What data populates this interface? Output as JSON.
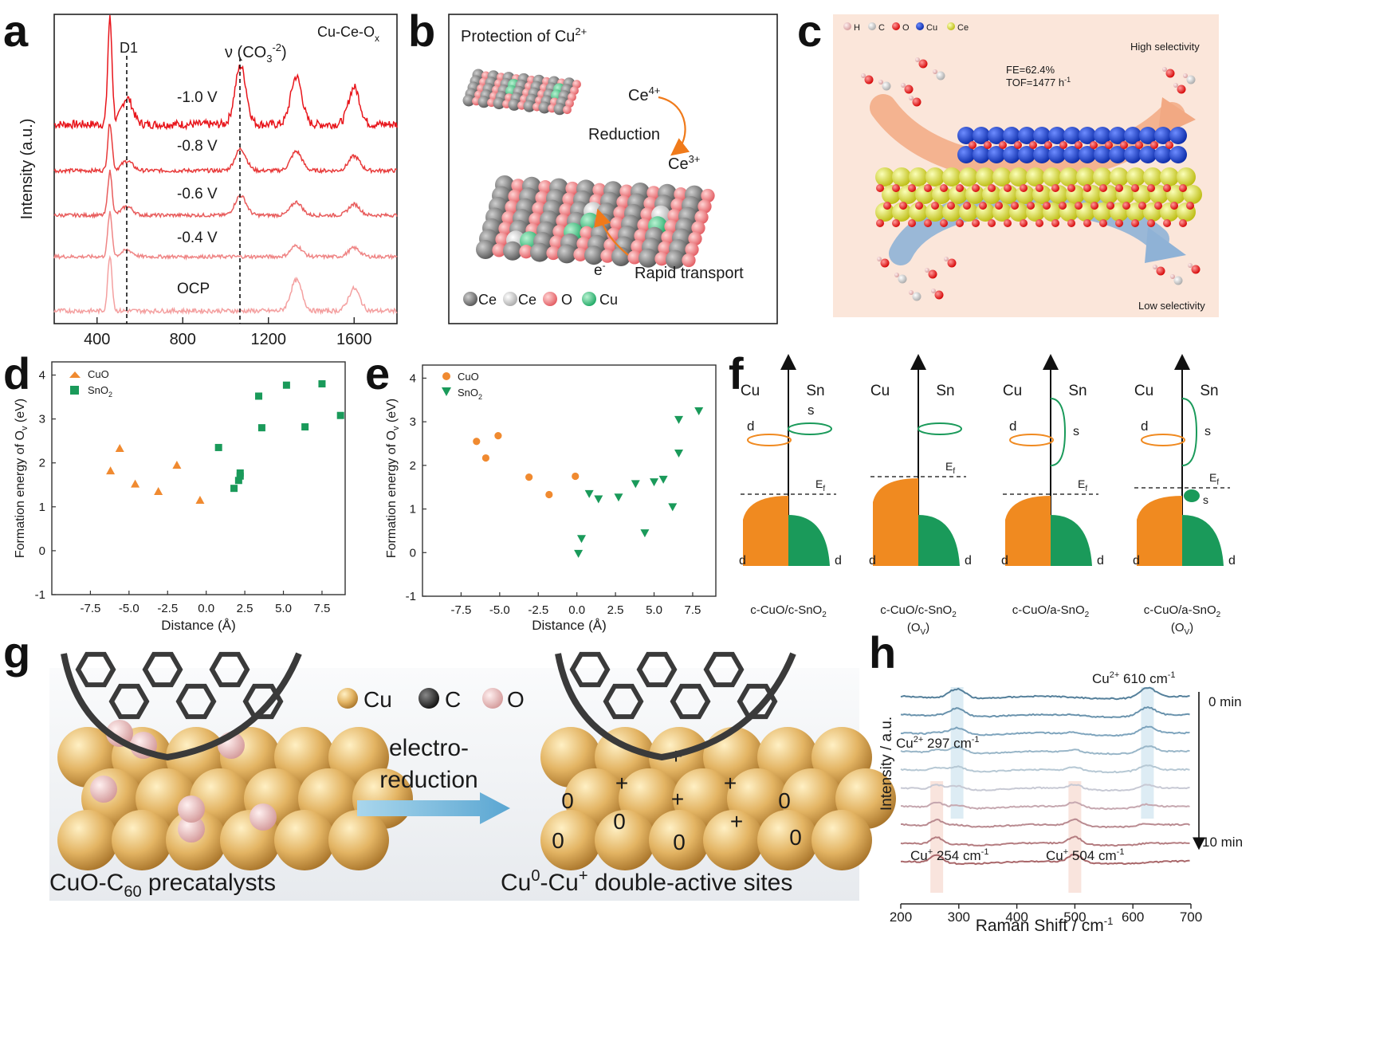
{
  "panels": {
    "a": {
      "label": "a",
      "corner": "Cu-Ce-O",
      "corner_sub": "x",
      "ylabel": "Intensity (a.u.)",
      "d1": "D1",
      "co3": "ν (CO",
      "co3_sub": "3",
      "co3_sup": "-2",
      "co3_close": ")",
      "curves": [
        "-1.0 V",
        "-0.8 V",
        "-0.6 V",
        "-0.4 V",
        "OCP"
      ],
      "xticks": [
        "400",
        "800",
        "1200",
        "1600"
      ]
    },
    "b": {
      "label": "b",
      "title": "Protection of Cu",
      "title_sup": "2+",
      "ce4": "Ce",
      "ce4_sup": "4+",
      "reduction": "Reduction",
      "ce3": "Ce",
      "ce3_sup": "3+",
      "electron": "e",
      "electron_sup": "-",
      "transport": "Rapid transport",
      "legend": [
        "Ce",
        "Ce",
        "O",
        "Cu"
      ]
    },
    "c": {
      "label": "c",
      "legend": [
        "H",
        "C",
        "O",
        "Cu",
        "Ce"
      ],
      "high": "High selectivity",
      "low": "Low selectivity",
      "fe": "FE=62.4%",
      "tof": "TOF=1477 h",
      "tof_sup": "-1"
    },
    "d": {
      "label": "d",
      "legend": [
        "CuO",
        "SnO",
        "2"
      ],
      "ylabel": "Formation energy of O",
      "ylabel_sub": "v",
      "ylabel_unit": " (eV)",
      "xlabel": "Distance (Å)"
    },
    "e": {
      "label": "e",
      "legend": [
        "CuO",
        "SnO",
        "2"
      ],
      "ylabel": "Formation energy of O",
      "ylabel_sub": "v",
      "ylabel_unit": " (eV)",
      "xlabel": "Distance (Å)"
    },
    "f": {
      "label": "f",
      "cu": "Cu",
      "sn": "Sn",
      "d": "d",
      "s": "s",
      "ef": "E",
      "ef_sub": "f",
      "captions": [
        "c-CuO/c-SnO",
        "c-CuO/c-SnO",
        "c-CuO/a-SnO",
        "c-CuO/a-SnO"
      ],
      "sub": "2",
      "ov": "(O",
      "ov_sub": "V",
      "ov_close": ")"
    },
    "g": {
      "label": "g",
      "legend": [
        "Cu",
        "C",
        "O"
      ],
      "arrow_top": "electro-",
      "arrow_bottom": "reduction",
      "left_caption": "CuO-C",
      "left_sub": "60",
      "left_tail": " precatalysts",
      "right_caption_a": "Cu",
      "right_sup_a": "0",
      "right_caption_b": "-Cu",
      "right_sup_b": "+",
      "right_tail": " double-active sites",
      "plus": "+",
      "zero": "0"
    },
    "h": {
      "label": "h",
      "ylabel": "Intensity / a.u.",
      "xlabel": "Raman Shift / cm",
      "xlabel_sup": "-1",
      "ann1": "Cu",
      "ann1_sup": "2+",
      "ann1_val": " 297 cm",
      "ann1_unit": "-1",
      "ann2": "Cu",
      "ann2_sup": "2+",
      "ann2_val": " 610 cm",
      "ann2_unit": "-1",
      "ann3": "Cu",
      "ann3_sup": "+",
      "ann3_val": " 254 cm",
      "ann3_unit": "-1",
      "ann4": "Cu",
      "ann4_sup": "+",
      "ann4_val": " 504 cm",
      "ann4_unit": "-1",
      "t0": "0 min",
      "t1": "10 min",
      "xticks": [
        "200",
        "300",
        "400",
        "500",
        "600",
        "700"
      ]
    }
  },
  "chart_data": [
    {
      "panel": "d",
      "type": "scatter",
      "xlabel": "Distance (Å)",
      "ylabel": "Formation energy of Ov (eV)",
      "xlim": [
        -10,
        9
      ],
      "ylim": [
        -1,
        4.3
      ],
      "xticks": [
        -7.5,
        -5.0,
        -2.5,
        0.0,
        2.5,
        5.0,
        7.5
      ],
      "yticks": [
        -1,
        0,
        1,
        2,
        3,
        4
      ],
      "series": [
        {
          "name": "CuO",
          "marker": "triangle-up",
          "color": "#f08a30",
          "points": [
            [
              -6.2,
              1.82
            ],
            [
              -5.6,
              2.33
            ],
            [
              -4.6,
              1.52
            ],
            [
              -3.1,
              1.35
            ],
            [
              -1.9,
              1.95
            ],
            [
              -0.4,
              1.15
            ]
          ]
        },
        {
          "name": "SnO2",
          "marker": "square",
          "color": "#1a9a5a",
          "points": [
            [
              0.8,
              2.35
            ],
            [
              1.8,
              1.42
            ],
            [
              2.1,
              1.6
            ],
            [
              2.2,
              1.7
            ],
            [
              2.2,
              1.77
            ],
            [
              3.4,
              3.52
            ],
            [
              3.6,
              2.8
            ],
            [
              5.2,
              3.77
            ],
            [
              6.4,
              2.82
            ],
            [
              7.5,
              3.8
            ],
            [
              8.7,
              3.08
            ]
          ]
        }
      ]
    },
    {
      "panel": "e",
      "type": "scatter",
      "xlabel": "Distance (Å)",
      "ylabel": "Formation energy of Ov (eV)",
      "xlim": [
        -10,
        9
      ],
      "ylim": [
        -1,
        4.3
      ],
      "xticks": [
        -7.5,
        -5.0,
        -2.5,
        0.0,
        2.5,
        5.0,
        7.5
      ],
      "yticks": [
        -1,
        0,
        1,
        2,
        3,
        4
      ],
      "series": [
        {
          "name": "CuO",
          "marker": "circle",
          "color": "#f08a30",
          "points": [
            [
              -6.5,
              2.55
            ],
            [
              -5.9,
              2.17
            ],
            [
              -5.1,
              2.68
            ],
            [
              -3.1,
              1.73
            ],
            [
              -1.8,
              1.33
            ],
            [
              -0.1,
              1.75
            ]
          ]
        },
        {
          "name": "SnO2",
          "marker": "triangle-down",
          "color": "#1a9a5a",
          "points": [
            [
              0.1,
              -0.02
            ],
            [
              0.3,
              0.32
            ],
            [
              0.8,
              1.35
            ],
            [
              1.4,
              1.23
            ],
            [
              2.7,
              1.27
            ],
            [
              3.8,
              1.58
            ],
            [
              4.4,
              0.45
            ],
            [
              5.0,
              1.62
            ],
            [
              5.6,
              1.68
            ],
            [
              6.2,
              1.05
            ],
            [
              6.6,
              2.28
            ],
            [
              6.6,
              3.05
            ],
            [
              7.9,
              3.25
            ]
          ]
        }
      ]
    },
    {
      "panel": "a",
      "type": "line",
      "xlabel": "",
      "ylabel": "Intensity (a.u.)",
      "xlim": [
        200,
        1800
      ],
      "xticks": [
        400,
        800,
        1200,
        1600
      ],
      "vlines": [
        {
          "x": 540,
          "label": "D1"
        },
        {
          "x": 1070,
          "label": "ν(CO3-2)"
        }
      ],
      "series": [
        {
          "name": "-1.0 V",
          "peaks": [
            [
              460,
              1.0
            ],
            [
              540,
              0.25
            ],
            [
              1070,
              0.55
            ],
            [
              1330,
              0.45
            ],
            [
              1600,
              0.35
            ]
          ]
        },
        {
          "name": "-0.8 V",
          "peaks": [
            [
              460,
              1.0
            ],
            [
              540,
              0.2
            ],
            [
              1070,
              0.45
            ],
            [
              1330,
              0.4
            ],
            [
              1600,
              0.3
            ]
          ]
        },
        {
          "name": "-0.6 V",
          "peaks": [
            [
              460,
              1.0
            ],
            [
              540,
              0.2
            ],
            [
              1070,
              0.45
            ],
            [
              1330,
              0.3
            ],
            [
              1600,
              0.25
            ]
          ]
        },
        {
          "name": "-0.4 V",
          "peaks": [
            [
              460,
              1.0
            ],
            [
              540,
              0.15
            ],
            [
              1330,
              0.25
            ],
            [
              1600,
              0.2
            ]
          ]
        },
        {
          "name": "OCP",
          "peaks": [
            [
              460,
              1.0
            ],
            [
              1330,
              0.55
            ],
            [
              1600,
              0.4
            ]
          ]
        }
      ]
    },
    {
      "panel": "h",
      "type": "line",
      "xlabel": "Raman Shift / cm-1",
      "ylabel": "Intensity / a.u.",
      "xlim": [
        200,
        700
      ],
      "xticks": [
        200,
        300,
        400,
        500,
        600,
        700
      ],
      "series_count": 10,
      "time_range": [
        "0 min",
        "10 min"
      ],
      "annotations": [
        {
          "x": 297,
          "label": "Cu2+ 297 cm-1"
        },
        {
          "x": 610,
          "label": "Cu2+ 610 cm-1"
        },
        {
          "x": 254,
          "label": "Cu+ 254 cm-1"
        },
        {
          "x": 504,
          "label": "Cu+ 504 cm-1"
        }
      ]
    }
  ]
}
